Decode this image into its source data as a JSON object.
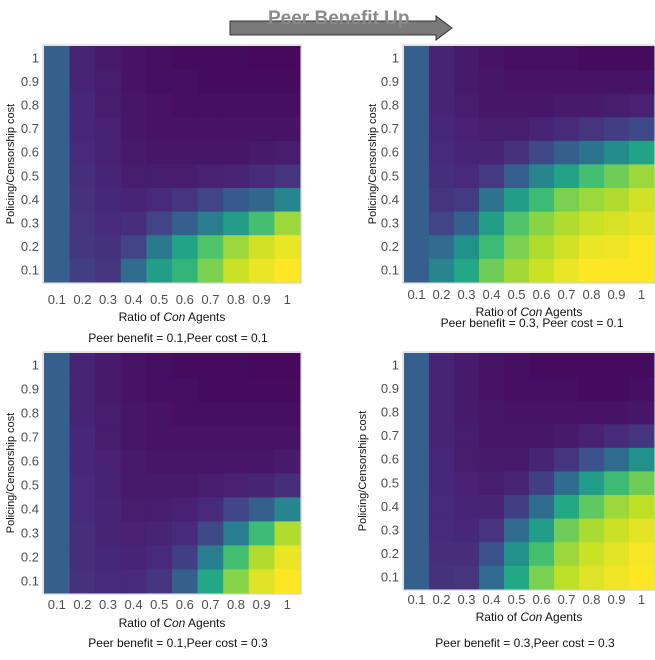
{
  "header": {
    "title": "Peer Benefit Up",
    "arrow_icon": "right-arrow-icon"
  },
  "colors": {
    "scale": [
      "#440154",
      "#482475",
      "#414487",
      "#355f8d",
      "#2a788e",
      "#21918c",
      "#22a884",
      "#44bf70",
      "#7ad151",
      "#bddf26",
      "#fde725"
    ],
    "panel_border": "#c9c9c9",
    "tick_text": "#4d4d4d"
  },
  "chart_data": [
    {
      "type": "heatmap",
      "xlabel_prefix": "Ratio of ",
      "xlabel_italic": "Con",
      "xlabel_suffix": " Agents",
      "ylabel": "Policing/Censorship cost",
      "caption": "Peer benefit = 0.1,Peer cost = 0.1",
      "x_ticks": [
        "0.1",
        "0.2",
        "0.3",
        "0.4",
        "0.5",
        "0.6",
        "0.7",
        "0.8",
        "0.9",
        "1"
      ],
      "y_ticks": [
        "0.1",
        "0.2",
        "0.3",
        "0.4",
        "0.5",
        "0.6",
        "0.7",
        "0.8",
        "0.9",
        "1"
      ],
      "value_range": [
        0,
        1
      ],
      "values": [
        [
          0.3,
          0.18,
          0.15,
          0.35,
          0.55,
          0.65,
          0.8,
          0.92,
          0.97,
          1.0
        ],
        [
          0.3,
          0.16,
          0.14,
          0.2,
          0.4,
          0.58,
          0.72,
          0.85,
          0.93,
          0.97
        ],
        [
          0.3,
          0.15,
          0.12,
          0.13,
          0.2,
          0.3,
          0.42,
          0.55,
          0.7,
          0.85
        ],
        [
          0.3,
          0.14,
          0.11,
          0.1,
          0.12,
          0.15,
          0.2,
          0.28,
          0.33,
          0.45
        ],
        [
          0.3,
          0.13,
          0.1,
          0.08,
          0.08,
          0.08,
          0.09,
          0.1,
          0.12,
          0.15
        ],
        [
          0.3,
          0.12,
          0.09,
          0.07,
          0.06,
          0.06,
          0.06,
          0.06,
          0.07,
          0.08
        ],
        [
          0.3,
          0.11,
          0.09,
          0.06,
          0.05,
          0.05,
          0.05,
          0.05,
          0.05,
          0.05
        ],
        [
          0.3,
          0.11,
          0.08,
          0.06,
          0.05,
          0.04,
          0.04,
          0.04,
          0.04,
          0.04
        ],
        [
          0.3,
          0.1,
          0.08,
          0.05,
          0.04,
          0.04,
          0.03,
          0.03,
          0.03,
          0.03
        ],
        [
          0.3,
          0.1,
          0.07,
          0.05,
          0.04,
          0.03,
          0.03,
          0.03,
          0.02,
          0.02
        ]
      ]
    },
    {
      "type": "heatmap",
      "xlabel_prefix": "Ratio of ",
      "xlabel_italic": "Con",
      "xlabel_suffix": " Agents",
      "ylabel": "Policing/Censorship cost",
      "caption": "Peer benefit = 0.3, Peer cost = 0.1",
      "x_ticks": [
        "0.1",
        "0.2",
        "0.3",
        "0.4",
        "0.5",
        "0.6",
        "0.7",
        "0.8",
        "0.9",
        "1"
      ],
      "y_ticks": [
        "0.1",
        "0.2",
        "0.3",
        "0.4",
        "0.5",
        "0.6",
        "0.7",
        "0.8",
        "0.9",
        "1"
      ],
      "value_range": [
        0,
        1
      ],
      "values": [
        [
          0.3,
          0.45,
          0.6,
          0.78,
          0.86,
          0.92,
          0.97,
          1.0,
          1.0,
          1.0
        ],
        [
          0.3,
          0.35,
          0.5,
          0.68,
          0.8,
          0.88,
          0.93,
          0.97,
          0.98,
          1.0
        ],
        [
          0.3,
          0.2,
          0.3,
          0.55,
          0.72,
          0.82,
          0.88,
          0.92,
          0.94,
          0.96
        ],
        [
          0.3,
          0.15,
          0.17,
          0.38,
          0.55,
          0.68,
          0.8,
          0.85,
          0.88,
          0.93
        ],
        [
          0.3,
          0.13,
          0.12,
          0.17,
          0.3,
          0.45,
          0.58,
          0.7,
          0.78,
          0.85
        ],
        [
          0.3,
          0.12,
          0.1,
          0.1,
          0.14,
          0.22,
          0.3,
          0.38,
          0.48,
          0.58
        ],
        [
          0.3,
          0.11,
          0.09,
          0.08,
          0.08,
          0.1,
          0.12,
          0.15,
          0.18,
          0.22
        ],
        [
          0.3,
          0.1,
          0.08,
          0.06,
          0.06,
          0.06,
          0.07,
          0.07,
          0.08,
          0.09
        ],
        [
          0.3,
          0.1,
          0.07,
          0.06,
          0.05,
          0.05,
          0.05,
          0.05,
          0.05,
          0.05
        ],
        [
          0.3,
          0.1,
          0.07,
          0.05,
          0.04,
          0.04,
          0.04,
          0.03,
          0.03,
          0.03
        ]
      ]
    },
    {
      "type": "heatmap",
      "xlabel_prefix": "Ratio of ",
      "xlabel_italic": "Con",
      "xlabel_suffix": " Agents",
      "ylabel": "Policing/Censorship cost",
      "caption": "Peer benefit = 0.1,Peer cost = 0.3",
      "x_ticks": [
        "0.1",
        "0.2",
        "0.3",
        "0.4",
        "0.5",
        "0.6",
        "0.7",
        "0.8",
        "0.9",
        "1"
      ],
      "y_ticks": [
        "0.1",
        "0.2",
        "0.3",
        "0.4",
        "0.5",
        "0.6",
        "0.7",
        "0.8",
        "0.9",
        "1"
      ],
      "value_range": [
        0,
        1
      ],
      "values": [
        [
          0.3,
          0.14,
          0.12,
          0.12,
          0.16,
          0.3,
          0.6,
          0.82,
          0.95,
          1.0
        ],
        [
          0.3,
          0.13,
          0.11,
          0.1,
          0.12,
          0.18,
          0.42,
          0.7,
          0.88,
          0.97
        ],
        [
          0.3,
          0.13,
          0.1,
          0.09,
          0.1,
          0.12,
          0.22,
          0.42,
          0.68,
          0.88
        ],
        [
          0.3,
          0.12,
          0.1,
          0.08,
          0.08,
          0.09,
          0.12,
          0.2,
          0.3,
          0.45
        ],
        [
          0.3,
          0.12,
          0.09,
          0.07,
          0.07,
          0.07,
          0.08,
          0.09,
          0.1,
          0.13
        ],
        [
          0.3,
          0.11,
          0.09,
          0.07,
          0.06,
          0.06,
          0.06,
          0.06,
          0.06,
          0.07
        ],
        [
          0.3,
          0.11,
          0.08,
          0.06,
          0.05,
          0.05,
          0.05,
          0.05,
          0.05,
          0.05
        ],
        [
          0.3,
          0.1,
          0.08,
          0.06,
          0.05,
          0.04,
          0.04,
          0.04,
          0.04,
          0.04
        ],
        [
          0.3,
          0.1,
          0.07,
          0.05,
          0.04,
          0.04,
          0.03,
          0.03,
          0.03,
          0.03
        ],
        [
          0.3,
          0.1,
          0.07,
          0.05,
          0.04,
          0.03,
          0.03,
          0.03,
          0.02,
          0.02
        ]
      ]
    },
    {
      "type": "heatmap",
      "xlabel_prefix": "Ratio of ",
      "xlabel_italic": "Con",
      "xlabel_suffix": " Agents",
      "ylabel": "Policing/Censorship cost",
      "caption": "Peer benefit = 0.3,Peer cost = 0.3",
      "x_ticks": [
        "0.1",
        "0.2",
        "0.3",
        "0.4",
        "0.5",
        "0.6",
        "0.7",
        "0.8",
        "0.9",
        "1"
      ],
      "y_ticks": [
        "0.1",
        "0.2",
        "0.3",
        "0.4",
        "0.5",
        "0.6",
        "0.7",
        "0.8",
        "0.9",
        "1"
      ],
      "value_range": [
        0,
        1
      ],
      "values": [
        [
          0.3,
          0.14,
          0.15,
          0.35,
          0.6,
          0.8,
          0.9,
          0.95,
          0.98,
          1.0
        ],
        [
          0.3,
          0.13,
          0.13,
          0.25,
          0.5,
          0.7,
          0.85,
          0.92,
          0.96,
          0.99
        ],
        [
          0.3,
          0.12,
          0.11,
          0.15,
          0.35,
          0.55,
          0.78,
          0.87,
          0.92,
          0.96
        ],
        [
          0.3,
          0.12,
          0.1,
          0.1,
          0.18,
          0.35,
          0.6,
          0.75,
          0.85,
          0.9
        ],
        [
          0.3,
          0.11,
          0.09,
          0.08,
          0.1,
          0.18,
          0.35,
          0.55,
          0.68,
          0.78
        ],
        [
          0.3,
          0.11,
          0.08,
          0.07,
          0.07,
          0.1,
          0.15,
          0.25,
          0.35,
          0.5
        ],
        [
          0.3,
          0.1,
          0.08,
          0.06,
          0.06,
          0.06,
          0.07,
          0.09,
          0.12,
          0.15
        ],
        [
          0.3,
          0.1,
          0.07,
          0.06,
          0.05,
          0.05,
          0.05,
          0.05,
          0.05,
          0.06
        ],
        [
          0.3,
          0.1,
          0.07,
          0.05,
          0.04,
          0.04,
          0.04,
          0.03,
          0.03,
          0.04
        ],
        [
          0.3,
          0.1,
          0.07,
          0.05,
          0.04,
          0.03,
          0.03,
          0.03,
          0.03,
          0.03
        ]
      ]
    }
  ]
}
